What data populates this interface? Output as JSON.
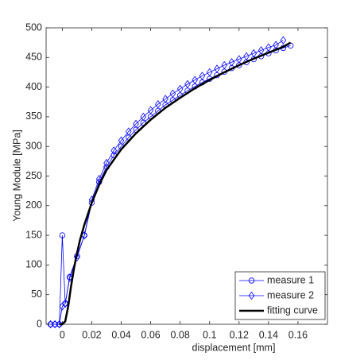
{
  "chart_data": {
    "type": "line",
    "xlabel": "displacement [mm]",
    "ylabel": "Young Module [MPa]",
    "xlim": [
      -0.011,
      0.18
    ],
    "ylim": [
      0,
      500
    ],
    "xticks": [
      0,
      0.02,
      0.04,
      0.06,
      0.08,
      0.1,
      0.12,
      0.14,
      0.16
    ],
    "yticks": [
      0,
      50,
      100,
      150,
      200,
      250,
      300,
      350,
      400,
      450,
      500
    ],
    "legend": "lower right",
    "series": [
      {
        "name": "measure 1",
        "color": "#0000ff",
        "marker": "circle",
        "x": [
          -0.008,
          -0.005,
          -0.002,
          0,
          0.002,
          0.005,
          0.01,
          0.015,
          0.02,
          0.025,
          0.03,
          0.035,
          0.04,
          0.045,
          0.05,
          0.055,
          0.06,
          0.065,
          0.07,
          0.075,
          0.08,
          0.085,
          0.09,
          0.095,
          0.1,
          0.105,
          0.11,
          0.115,
          0.12,
          0.125,
          0.13,
          0.135,
          0.14,
          0.145,
          0.15,
          0.155
        ],
        "values": [
          0,
          0,
          0,
          150,
          35,
          80,
          115,
          150,
          205,
          240,
          265,
          285,
          300,
          315,
          328,
          340,
          350,
          360,
          370,
          378,
          386,
          394,
          401,
          408,
          414,
          420,
          426,
          432,
          437,
          442,
          447,
          452,
          457,
          462,
          466,
          470
        ]
      },
      {
        "name": "measure 2",
        "color": "#0000ff",
        "marker": "diamond",
        "x": [
          -0.008,
          -0.005,
          -0.002,
          0,
          0.002,
          0.005,
          0.01,
          0.015,
          0.02,
          0.025,
          0.03,
          0.035,
          0.04,
          0.045,
          0.05,
          0.055,
          0.06,
          0.065,
          0.07,
          0.075,
          0.08,
          0.085,
          0.09,
          0.095,
          0.1,
          0.105,
          0.11,
          0.115,
          0.12,
          0.125,
          0.13,
          0.135,
          0.14,
          0.145,
          0.15
        ],
        "values": [
          0,
          0,
          0,
          30,
          35,
          78,
          113,
          150,
          210,
          245,
          272,
          293,
          310,
          325,
          338,
          350,
          361,
          371,
          380,
          389,
          397,
          405,
          412,
          419,
          425,
          431,
          437,
          442,
          447,
          452,
          457,
          462,
          467,
          471,
          479
        ]
      },
      {
        "name": "fitting curve",
        "color": "#000000",
        "marker": "none",
        "x": [
          -0.002,
          0,
          0.002,
          0.004,
          0.006,
          0.008,
          0.01,
          0.012,
          0.015,
          0.02,
          0.025,
          0.03,
          0.04,
          0.05,
          0.06,
          0.07,
          0.08,
          0.09,
          0.1,
          0.11,
          0.12,
          0.13,
          0.14,
          0.15,
          0.155
        ],
        "values": [
          0,
          0,
          5,
          30,
          65,
          95,
          120,
          142,
          168,
          205,
          235,
          260,
          295,
          322,
          345,
          365,
          382,
          398,
          412,
          425,
          437,
          448,
          458,
          468,
          475
        ]
      }
    ]
  }
}
